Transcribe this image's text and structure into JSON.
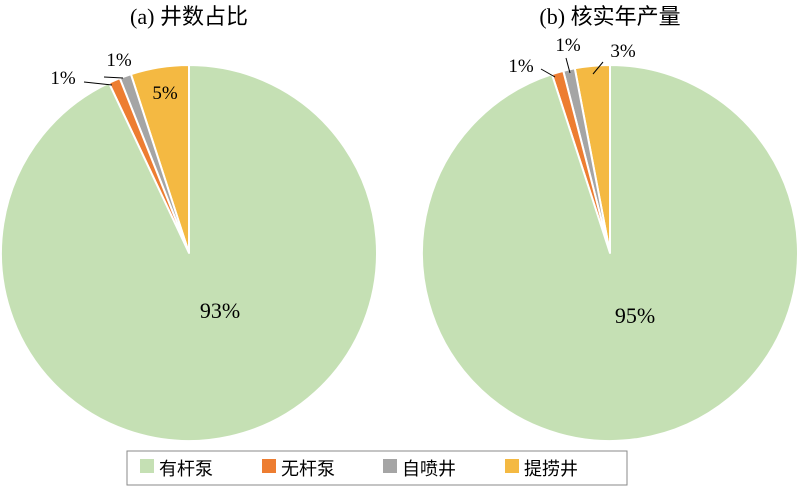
{
  "chart_data": [
    {
      "type": "pie",
      "title": "(a) 井数占比",
      "slices": [
        {
          "name": "有杆泵",
          "value": 93,
          "label": "93%",
          "color": "#c5e0b4"
        },
        {
          "name": "无杆泵",
          "value": 1,
          "label": "1%",
          "color": "#ed7d31"
        },
        {
          "name": "自喷井",
          "value": 1,
          "label": "1%",
          "color": "#a5a5a5"
        },
        {
          "name": "提捞井",
          "value": 5,
          "label": "5%",
          "color": "#f4b942"
        }
      ]
    },
    {
      "type": "pie",
      "title": "(b) 核实年产量",
      "slices": [
        {
          "name": "有杆泵",
          "value": 95,
          "label": "95%",
          "color": "#c5e0b4"
        },
        {
          "name": "无杆泵",
          "value": 1,
          "label": "1%",
          "color": "#ed7d31"
        },
        {
          "name": "自喷井",
          "value": 1,
          "label": "1%",
          "color": "#a5a5a5"
        },
        {
          "name": "提捞井",
          "value": 3,
          "label": "3%",
          "color": "#f4b942"
        }
      ]
    }
  ],
  "legend": {
    "placement": "bottom",
    "items": [
      {
        "label": "有杆泵",
        "color": "#c5e0b4"
      },
      {
        "label": "无杆泵",
        "color": "#ed7d31"
      },
      {
        "label": "自喷井",
        "color": "#a5a5a5"
      },
      {
        "label": "提捞井",
        "color": "#f4b942"
      }
    ]
  }
}
